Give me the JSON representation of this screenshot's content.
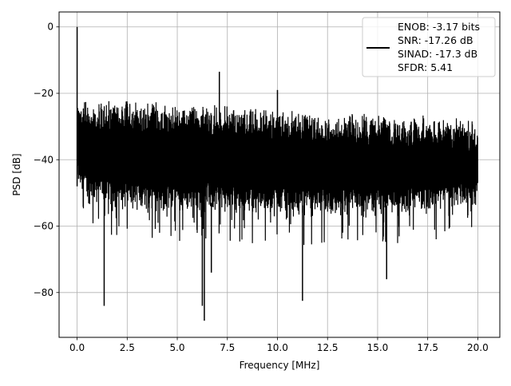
{
  "chart_data": {
    "type": "line",
    "title": "",
    "xlabel": "Frequency [MHz]",
    "ylabel": "PSD [dB]",
    "xlim": [
      -0.9,
      21.1
    ],
    "ylim": [
      -93.5,
      4.5
    ],
    "xticks": [
      0.0,
      2.5,
      5.0,
      7.5,
      10.0,
      12.5,
      15.0,
      17.5,
      20.0
    ],
    "xtick_labels": [
      "0.0",
      "2.5",
      "5.0",
      "7.5",
      "10.0",
      "12.5",
      "15.0",
      "17.5",
      "20.0"
    ],
    "yticks": [
      0,
      -20,
      -40,
      -60,
      -80
    ],
    "ytick_labels": [
      "0",
      "−20",
      "−40",
      "−60",
      "−80"
    ],
    "grid": true,
    "legend_position": "top-right",
    "series": [
      {
        "name": "ENOB: -3.17 bits\nSNR: -17.26 dB\nSINAD: -17.3 dB\nSFDR: 5.41",
        "color": "#000000",
        "x_range": [
          0.0,
          20.0
        ],
        "upper_envelope": {
          "x": [
            0.05,
            0.5,
            2.5,
            5.0,
            7.5,
            10.0,
            12.5,
            15.0,
            17.5,
            20.0
          ],
          "y": [
            -21,
            -22,
            -22,
            -23,
            -23.5,
            -24.5,
            -25.5,
            -26,
            -26.5,
            -28
          ]
        },
        "lower_envelope": {
          "x": [
            0.05,
            0.5,
            2.5,
            5.0,
            7.5,
            10.0,
            12.5,
            15.0,
            17.5,
            20.0
          ],
          "y": [
            -50,
            -54,
            -56,
            -57,
            -57,
            -57.5,
            -58,
            -58,
            -57,
            -55
          ]
        },
        "peaks": [
          {
            "x": 0.0,
            "y": 0
          },
          {
            "x": 7.1,
            "y": -13.5
          },
          {
            "x": 10.0,
            "y": -19
          }
        ],
        "dips": [
          {
            "x": 1.35,
            "y": -84
          },
          {
            "x": 6.25,
            "y": -84
          },
          {
            "x": 6.35,
            "y": -88.5
          },
          {
            "x": 6.7,
            "y": -74
          },
          {
            "x": 11.25,
            "y": -82.5
          },
          {
            "x": 15.45,
            "y": -76
          }
        ]
      }
    ],
    "legend_lines": [
      "ENOB: -3.17 bits",
      "SNR: -17.26 dB",
      "SINAD: -17.3 dB",
      "SFDR: 5.41"
    ]
  }
}
